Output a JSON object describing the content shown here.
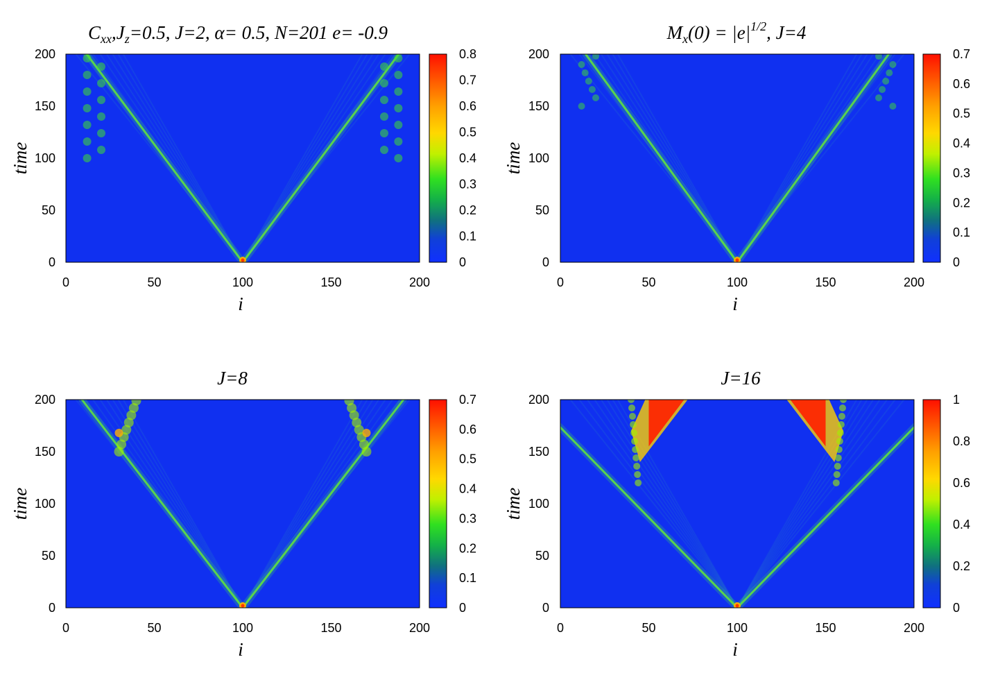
{
  "colors": {
    "scale": [
      "#1030ff",
      "#1038e8",
      "#106a9a",
      "#12b058",
      "#20e030",
      "#b6f000",
      "#ffe000",
      "#ffb000",
      "#ff7a00",
      "#ff1800"
    ],
    "background": "#1030f0"
  },
  "chart_data": [
    {
      "type": "heatmap",
      "title_parts": {
        "main": "C",
        "sub1": "xx",
        "mid": ",J",
        "sub2": "z",
        "rest": "=0.5,  J=2, α= 0.5, N=201 e= -0.9"
      },
      "xlabel": "i",
      "ylabel": "time",
      "xlim": [
        0,
        200
      ],
      "ylim": [
        0,
        200
      ],
      "xticks": [
        "0",
        "50",
        "100",
        "150",
        "200"
      ],
      "yticks": [
        "0",
        "50",
        "100",
        "150",
        "200"
      ],
      "colorbar": {
        "range": [
          0,
          0.8
        ],
        "ticks": [
          "0",
          "0.1",
          "0.2",
          "0.3",
          "0.4",
          "0.5",
          "0.6",
          "0.7",
          "0.8"
        ]
      }
    },
    {
      "type": "heatmap",
      "title_parts": {
        "main": "M",
        "sub": "x",
        "mid": "(0) = |e|",
        "sup": "1/2",
        "rest": ",  J=4"
      },
      "xlabel": "i",
      "ylabel": "time",
      "xlim": [
        0,
        200
      ],
      "ylim": [
        0,
        200
      ],
      "xticks": [
        "0",
        "50",
        "100",
        "150",
        "200"
      ],
      "yticks": [
        "0",
        "50",
        "100",
        "150",
        "200"
      ],
      "colorbar": {
        "range": [
          0,
          0.7
        ],
        "ticks": [
          "0",
          "0.1",
          "0.2",
          "0.3",
          "0.4",
          "0.5",
          "0.6",
          "0.7"
        ]
      }
    },
    {
      "type": "heatmap",
      "title": "J=8",
      "xlabel": "i",
      "ylabel": "time",
      "xlim": [
        0,
        200
      ],
      "ylim": [
        0,
        200
      ],
      "xticks": [
        "0",
        "50",
        "100",
        "150",
        "200"
      ],
      "yticks": [
        "0",
        "50",
        "100",
        "150",
        "200"
      ],
      "colorbar": {
        "range": [
          0,
          0.7
        ],
        "ticks": [
          "0",
          "0.1",
          "0.2",
          "0.3",
          "0.4",
          "0.5",
          "0.6",
          "0.7"
        ]
      }
    },
    {
      "type": "heatmap",
      "title": "J=16",
      "xlabel": "i",
      "ylabel": "time",
      "xlim": [
        0,
        200
      ],
      "ylim": [
        0,
        200
      ],
      "xticks": [
        "0",
        "50",
        "100",
        "150",
        "200"
      ],
      "yticks": [
        "0",
        "50",
        "100",
        "150",
        "200"
      ],
      "colorbar": {
        "range": [
          0,
          1
        ],
        "ticks": [
          "0",
          "0.2",
          "0.4",
          "0.6",
          "0.8",
          "1"
        ]
      }
    }
  ]
}
